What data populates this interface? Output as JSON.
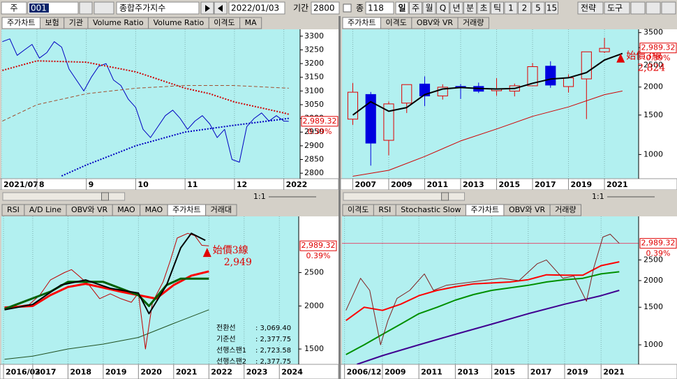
{
  "toolbar": {
    "market": "주",
    "code": "001",
    "name": "종합주가지수",
    "date": "2022/01/03",
    "period_label": "기간",
    "period": "2800",
    "count_label": "종",
    "count": "118",
    "buttons": [
      "일",
      "주",
      "월",
      "Q",
      "년",
      "분",
      "초",
      "틱",
      "1",
      "2",
      "5",
      "15"
    ],
    "menus": [
      "전략",
      "도구"
    ]
  },
  "chart_data": [
    {
      "type": "line",
      "tabs": [
        "주가차트",
        "보험",
        "기관",
        "Volume Ratio",
        "Volume Ratio",
        "이격도",
        "MA"
      ],
      "active_tab": 0,
      "log": false,
      "xlim": [
        7.28,
        13.33
      ],
      "xticks": [
        {
          "value": 7.28,
          "label": "2021/07"
        },
        8,
        9,
        10,
        11,
        12,
        {
          "value": 13,
          "label": "2022"
        }
      ],
      "ylim": [
        2780,
        3325
      ],
      "yticks": [
        2800,
        2850,
        2900,
        2950,
        3000,
        3050,
        3100,
        3150,
        3200,
        3250,
        3300
      ],
      "series": [
        {
          "color": "#0000c0",
          "width": 1,
          "x": [
            7.3,
            7.45,
            7.6,
            7.75,
            7.9,
            8.05,
            8.2,
            8.35,
            8.5,
            8.65,
            8.8,
            8.95,
            9.1,
            9.25,
            9.4,
            9.55,
            9.7,
            9.85,
            10.0,
            10.15,
            10.3,
            10.45,
            10.6,
            10.75,
            10.9,
            11.05,
            11.2,
            11.35,
            11.5,
            11.65,
            11.8,
            11.95,
            12.1,
            12.25,
            12.4,
            12.55,
            12.7,
            12.85,
            13.0,
            13.1
          ],
          "values": [
            3280,
            3290,
            3230,
            3250,
            3270,
            3220,
            3240,
            3280,
            3260,
            3180,
            3140,
            3100,
            3150,
            3190,
            3200,
            3140,
            3120,
            3070,
            3040,
            2960,
            2930,
            2970,
            3010,
            3030,
            3000,
            2960,
            2990,
            3010,
            2980,
            2930,
            2960,
            2850,
            2840,
            2970,
            3000,
            3020,
            2990,
            3010,
            2990,
            2989.32
          ]
        },
        {
          "color": "#d00000",
          "width": 2,
          "dash": "dotted",
          "x": [
            7.3,
            8,
            9,
            10,
            10.5,
            11,
            11.5,
            12,
            12.5,
            13,
            13.1
          ],
          "values": [
            3175,
            3210,
            3205,
            3170,
            3140,
            3110,
            3090,
            3060,
            3040,
            3020,
            3015
          ]
        },
        {
          "color": "#a05030",
          "width": 1,
          "dash": "dashed",
          "x": [
            7.3,
            8,
            9,
            10,
            11,
            12,
            13.1
          ],
          "values": [
            2990,
            3050,
            3090,
            3110,
            3120,
            3120,
            3110
          ]
        },
        {
          "color": "#0000c0",
          "width": 2,
          "dash": "dotted",
          "x": [
            8.5,
            9,
            10,
            11,
            12,
            13.1
          ],
          "values": [
            2790,
            2830,
            2900,
            2950,
            2975,
            3000
          ]
        }
      ],
      "last_price": {
        "value": 2989.32,
        "label": "2,989.32"
      },
      "change": "0.39%",
      "zoom_label": "1:1"
    },
    {
      "type": "candlestick",
      "tabs": [
        "주가차트",
        "이격도",
        "OBV와 VR",
        "거래량"
      ],
      "active_tab": 0,
      "log": true,
      "xlim": [
        2006.4,
        2022.9
      ],
      "xticks": [
        2007,
        2009,
        2011,
        2013,
        2015,
        2017,
        2019,
        2021
      ],
      "ylim": [
        780,
        3620
      ],
      "yticks": [
        1000,
        1500,
        2000,
        2500,
        3000,
        3500
      ],
      "candles": {
        "x": [
          2007,
          2008,
          2009,
          2010,
          2011,
          2012,
          2013,
          2014,
          2015,
          2016,
          2017,
          2018,
          2019,
          2020,
          2021
        ],
        "open": [
          1438,
          1853,
          1157,
          1696,
          2063,
          1826,
          2013,
          2013,
          1926,
          1918,
          2026,
          2479,
          2010,
          2175,
          2874
        ],
        "high": [
          2085,
          1901,
          1723,
          2052,
          2231,
          2057,
          2063,
          2093,
          2189,
          2073,
          2561,
          2607,
          2277,
          2878,
          3316
        ],
        "low": [
          1355,
          892,
          992,
          1532,
          1644,
          1758,
          1770,
          1881,
          1829,
          1817,
          2026,
          1985,
          1891,
          1439,
          2839
        ],
        "close": [
          1897,
          1124,
          1682,
          2051,
          1826,
          1997,
          2011,
          1916,
          1961,
          2026,
          2467,
          2041,
          2198,
          2873,
          2978
        ]
      },
      "series": [
        {
          "color": "#000000",
          "width": 2,
          "x": [
            2007,
            2008,
            2009,
            2010,
            2011,
            2012,
            2013,
            2014,
            2015,
            2016,
            2017,
            2018,
            2019,
            2020,
            2021,
            2022
          ],
          "values": [
            1500,
            1720,
            1560,
            1620,
            1850,
            1960,
            1990,
            1970,
            1960,
            1970,
            2080,
            2170,
            2200,
            2320,
            2640,
            2824
          ]
        },
        {
          "color": "#d00000",
          "width": 1,
          "x": [
            2007,
            2009,
            2011,
            2013,
            2015,
            2017,
            2019,
            2021,
            2022
          ],
          "values": [
            800,
            850,
            980,
            1150,
            1300,
            1480,
            1630,
            1850,
            1920
          ]
        }
      ],
      "annotation": {
        "title": "始價3線",
        "value": 2824,
        "label": "2,824",
        "x": 2021.9
      },
      "last_price": {
        "value": 2989.32,
        "label": "2,989.32"
      },
      "change": "0.39%",
      "zoom_label": "1:1"
    },
    {
      "type": "line",
      "tabs": [
        "RSI",
        "A/D Line",
        "OBV와 VR",
        "MAO",
        "MAO",
        "주가차트",
        "거래대"
      ],
      "active_tab": 5,
      "log": true,
      "xlim": [
        2016.11,
        2024.55
      ],
      "xticks": [
        {
          "value": 2016.17,
          "label": "2016/03"
        },
        2017,
        2018,
        2019,
        2020,
        2021,
        2022,
        2023,
        2024
      ],
      "ylim": [
        1354,
        3640
      ],
      "yticks": [
        1500,
        2000,
        2500
      ],
      "series": [
        {
          "color": "#205020",
          "width": 1,
          "x": [
            2016.2,
            2017,
            2018,
            2019,
            2020,
            2021,
            2022
          ],
          "values": [
            1400,
            1430,
            1500,
            1550,
            1620,
            1780,
            1950
          ]
        },
        {
          "color": "#c00000",
          "width": 1,
          "x": [
            2016.2,
            2016.6,
            2016.9,
            2017.2,
            2017.5,
            2017.9,
            2018.1,
            2018.3,
            2018.6,
            2018.9,
            2019.2,
            2019.5,
            2019.8,
            2020.0,
            2020.2,
            2020.4,
            2020.7,
            2020.9,
            2021.1,
            2021.4,
            2021.6,
            2021.8,
            2022.0
          ],
          "values": [
            1950,
            2000,
            2020,
            2150,
            2380,
            2500,
            2550,
            2450,
            2300,
            2100,
            2170,
            2100,
            2050,
            2180,
            1500,
            2050,
            2350,
            2700,
            3150,
            3250,
            3200,
            3000,
            2989.32
          ]
        },
        {
          "color": "#ff0000",
          "width": 3,
          "x": [
            2016.2,
            2017,
            2017.5,
            2018,
            2018.5,
            2019,
            2019.5,
            2020,
            2020.5,
            2021,
            2021.5,
            2022
          ],
          "values": [
            1980,
            2000,
            2150,
            2270,
            2320,
            2260,
            2200,
            2150,
            2100,
            2300,
            2450,
            2520
          ]
        },
        {
          "color": "#006000",
          "width": 3,
          "x": [
            2016.2,
            2017.5,
            2018,
            2019,
            2020,
            2020.3,
            2020.8,
            2021.2,
            2022
          ],
          "values": [
            1960,
            2200,
            2350,
            2350,
            2150,
            2000,
            2300,
            2400,
            2400
          ]
        },
        {
          "color": "#000000",
          "width": 2,
          "x": [
            2016.2,
            2017,
            2017.8,
            2018.5,
            2019.2,
            2020,
            2020.3,
            2020.8,
            2021.2,
            2021.5,
            2021.9
          ],
          "values": [
            1950,
            2020,
            2300,
            2380,
            2250,
            2180,
            1900,
            2300,
            2950,
            3250,
            3100
          ]
        }
      ],
      "annotation": {
        "title": "始價3線",
        "value": 2949,
        "label": "2,949",
        "x": 2021.95
      },
      "info": [
        {
          "label": "전환선",
          "value": ": 3,069.40"
        },
        {
          "label": "기준선",
          "value": ": 2,377.75"
        },
        {
          "label": "선행스팬1",
          "value": ": 2,723.58"
        },
        {
          "label": "선행스팬2",
          "value": ": 2,377.75"
        }
      ],
      "last_price": {
        "value": 2989.32,
        "label": "2,989.32"
      },
      "change": "0.39%"
    },
    {
      "type": "line",
      "tabs": [
        "이격도",
        "RSI",
        "Stochastic Slow",
        "주가차트",
        "OBV와 VR",
        "거래량"
      ],
      "active_tab": 3,
      "log": true,
      "xlim": [
        2006.78,
        2023.06
      ],
      "xticks": [
        {
          "value": 2006.92,
          "label": "2006/12"
        },
        2009,
        2011,
        2013,
        2015,
        2017,
        2019,
        2021
      ],
      "ylim": [
        810,
        4000
      ],
      "yticks": [
        1000,
        1500,
        2000,
        2500
      ],
      "series": [
        {
          "color": "#400090",
          "width": 2,
          "x": [
            2007.6,
            2009,
            2011,
            2013,
            2015,
            2017,
            2019,
            2021,
            2022
          ],
          "values": [
            810,
            890,
            1000,
            1120,
            1250,
            1400,
            1550,
            1700,
            1800
          ]
        },
        {
          "color": "#009000",
          "width": 2,
          "x": [
            2007,
            2008,
            2009,
            2010,
            2011,
            2012,
            2013,
            2014,
            2015,
            2016,
            2017,
            2018,
            2019,
            2020,
            2021,
            2022
          ],
          "values": [
            900,
            1000,
            1120,
            1250,
            1400,
            1500,
            1620,
            1720,
            1800,
            1850,
            1900,
            1970,
            2020,
            2050,
            2150,
            2200
          ]
        },
        {
          "color": "#ff0000",
          "width": 2,
          "x": [
            2007,
            2008,
            2009,
            2010,
            2011,
            2012,
            2013,
            2014,
            2015,
            2016,
            2017,
            2018,
            2019,
            2020,
            2021,
            2022
          ],
          "values": [
            1300,
            1500,
            1450,
            1550,
            1700,
            1800,
            1870,
            1930,
            1950,
            1970,
            2020,
            2130,
            2120,
            2120,
            2350,
            2450
          ]
        },
        {
          "color": "#802020",
          "width": 1,
          "x": [
            2007,
            2007.8,
            2008.3,
            2008.9,
            2009.3,
            2009.8,
            2010.5,
            2011.3,
            2011.8,
            2012.5,
            2013.5,
            2014.5,
            2015.5,
            2016.5,
            2017.5,
            2018.0,
            2018.9,
            2019.5,
            2020.2,
            2020.6,
            2021.1,
            2021.5,
            2022
          ],
          "values": [
            1450,
            2050,
            1800,
            1000,
            1300,
            1650,
            1800,
            2150,
            1800,
            1900,
            1950,
            2000,
            2050,
            2000,
            2400,
            2500,
            2050,
            2100,
            1600,
            2300,
            3200,
            3300,
            2989.32
          ]
        }
      ],
      "price_line": true,
      "last_price": {
        "value": 2989.32,
        "label": "2,989.32"
      },
      "change": "0.39%"
    }
  ]
}
